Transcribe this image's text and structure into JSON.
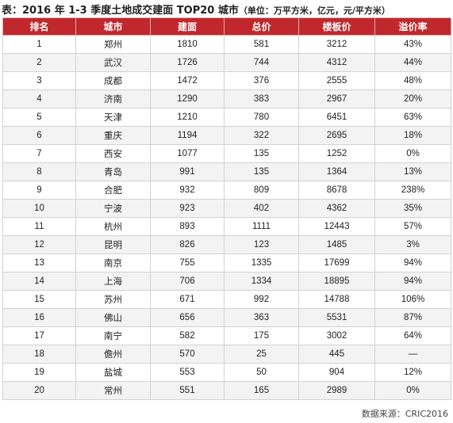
{
  "title": "表：2016 年 1-3 季度土地成交建面 TOP20 城市",
  "unit_note": "（单位：万平方米，亿元，元/平方米）",
  "columns": [
    "排名",
    "城市",
    "建面",
    "总价",
    "楼板价",
    "溢价率"
  ],
  "rows": [
    [
      "1",
      "郑州",
      "1810",
      "581",
      "3212",
      "43%"
    ],
    [
      "2",
      "武汉",
      "1726",
      "744",
      "4312",
      "44%"
    ],
    [
      "3",
      "成都",
      "1472",
      "376",
      "2555",
      "48%"
    ],
    [
      "4",
      "济南",
      "1290",
      "383",
      "2967",
      "20%"
    ],
    [
      "5",
      "天津",
      "1210",
      "780",
      "6451",
      "63%"
    ],
    [
      "6",
      "重庆",
      "1194",
      "322",
      "2695",
      "18%"
    ],
    [
      "7",
      "西安",
      "1077",
      "135",
      "1252",
      "0%"
    ],
    [
      "8",
      "青岛",
      "991",
      "135",
      "1364",
      "13%"
    ],
    [
      "9",
      "合肥",
      "932",
      "809",
      "8678",
      "238%"
    ],
    [
      "10",
      "宁波",
      "923",
      "402",
      "4362",
      "35%"
    ],
    [
      "11",
      "杭州",
      "893",
      "1111",
      "12443",
      "57%"
    ],
    [
      "12",
      "昆明",
      "826",
      "123",
      "1485",
      "3%"
    ],
    [
      "13",
      "南京",
      "755",
      "1335",
      "17699",
      "94%"
    ],
    [
      "14",
      "上海",
      "706",
      "1334",
      "18895",
      "94%"
    ],
    [
      "15",
      "苏州",
      "671",
      "992",
      "14788",
      "106%"
    ],
    [
      "16",
      "佛山",
      "656",
      "363",
      "5531",
      "87%"
    ],
    [
      "17",
      "南宁",
      "582",
      "175",
      "3002",
      "64%"
    ],
    [
      "18",
      "儋州",
      "570",
      "25",
      "445",
      "—"
    ],
    [
      "19",
      "盐城",
      "553",
      "50",
      "904",
      "12%"
    ],
    [
      "20",
      "常州",
      "551",
      "165",
      "2989",
      "0%"
    ]
  ],
  "source": "数据来源：CRIC2016",
  "colors": {
    "header_bg": "#c0282d",
    "header_text": "#ffffff",
    "alt_row": "#f3f3f3"
  }
}
